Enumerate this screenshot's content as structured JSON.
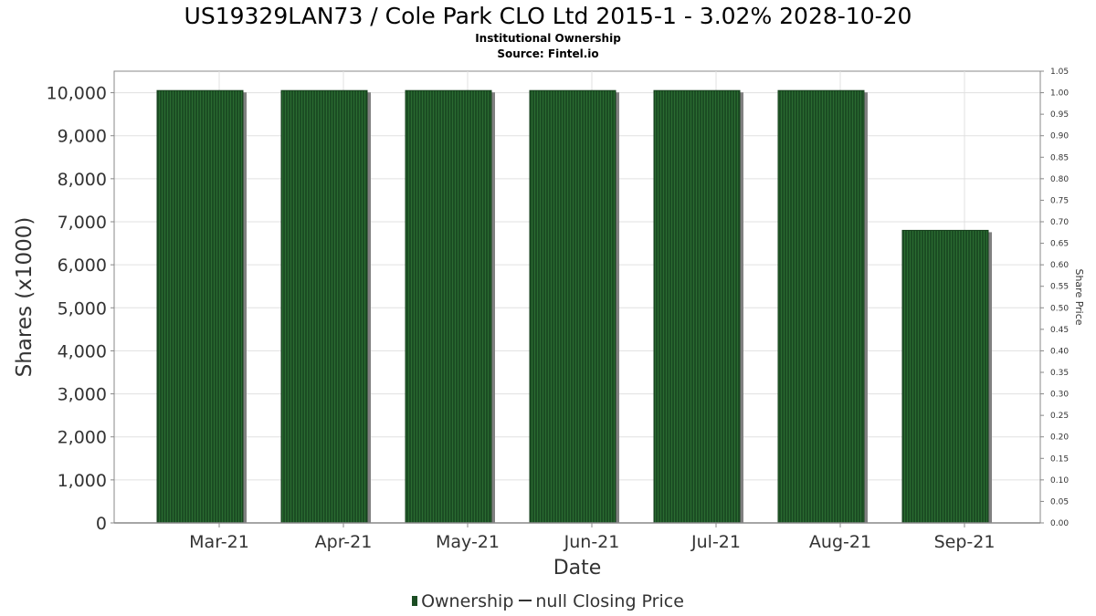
{
  "title": "US19329LAN73 / Cole Park CLO Ltd 2015-1 - 3.02% 2028-10-20",
  "subtitle1": "Institutional Ownership",
  "subtitle2": "Source: Fintel.io",
  "legend": {
    "ownership": "Ownership",
    "price": "null Closing Price"
  },
  "colors": {
    "bar": "#1b4d23",
    "bar_stripe": "#2a6b31",
    "bar_shadow": "#808080",
    "grid": "#e0e0e0",
    "axis": "#888888"
  },
  "chart_data": {
    "type": "bar",
    "categories": [
      "Mar-21",
      "Apr-21",
      "May-21",
      "Jun-21",
      "Jul-21",
      "Aug-21",
      "Sep-21"
    ],
    "series": [
      {
        "name": "Ownership",
        "values": [
          10050,
          10050,
          10050,
          10050,
          10050,
          10050,
          6800
        ]
      }
    ],
    "xlabel": "Date",
    "ylabel": "Shares (x1000)",
    "ylim": [
      0,
      10500
    ],
    "yticks": [
      "0",
      "1,000",
      "2,000",
      "3,000",
      "4,000",
      "5,000",
      "6,000",
      "7,000",
      "8,000",
      "9,000",
      "10,000"
    ],
    "y2label": "Share Price",
    "y2lim": [
      0,
      1.05
    ],
    "y2ticks": [
      "0.00",
      "0.05",
      "0.10",
      "0.15",
      "0.20",
      "0.25",
      "0.30",
      "0.35",
      "0.40",
      "0.45",
      "0.50",
      "0.55",
      "0.60",
      "0.65",
      "0.70",
      "0.75",
      "0.80",
      "0.85",
      "0.90",
      "0.95",
      "1.00",
      "1.05"
    ],
    "grid": true,
    "legend_position": "bottom"
  }
}
